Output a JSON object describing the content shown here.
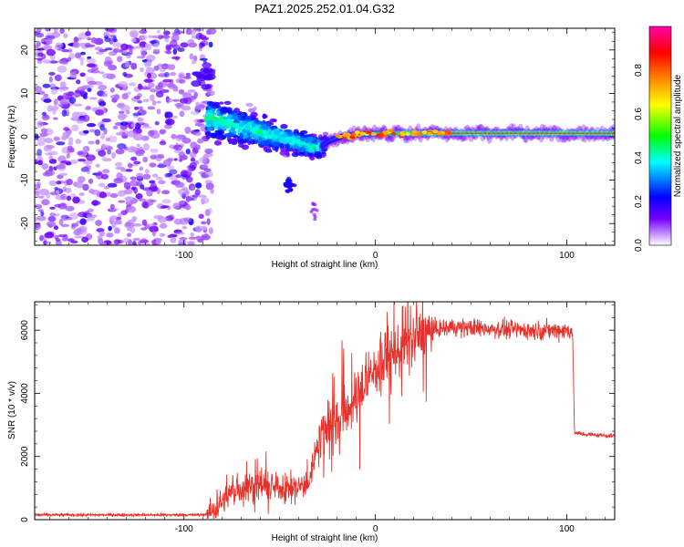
{
  "chart_data": [
    {
      "type": "heatmap",
      "title": "PAZ1.2025.252.01.04.G32",
      "xlabel": "Height of straight line (km)",
      "ylabel": "Frequency (Hz)",
      "xlim": [
        -178,
        125
      ],
      "ylim": [
        -25,
        25
      ],
      "x_ticks": [
        "-100",
        "0",
        "100"
      ],
      "y_ticks": [
        "20",
        "10",
        "0",
        "-10",
        "-20"
      ],
      "colorbar": {
        "label": "Normalized spectral amplitude",
        "range": [
          0,
          1
        ],
        "ticks": [
          "0.0",
          "0.2",
          "0.4",
          "0.6",
          "0.8"
        ],
        "stops": [
          "#ffffff",
          "#7700ff",
          "#0000ff",
          "#00ffff",
          "#00ff00",
          "#ffff00",
          "#ff8800",
          "#ff0000",
          "#ff00aa"
        ]
      },
      "features": {
        "noise_region_x": [
          -178,
          -85
        ],
        "tone_line_frequency_hz": 0.8,
        "tone_line_start_x": -30,
        "tone_line_end_x": 125
      }
    },
    {
      "type": "line",
      "xlabel": "Height of straight line (km)",
      "ylabel": "SNR (10 * v/v)",
      "xlim": [
        -178,
        125
      ],
      "ylim": [
        0,
        6900
      ],
      "x_ticks": [
        "-100",
        "0",
        "100"
      ],
      "y_ticks": [
        "0",
        "2000",
        "4000",
        "6000"
      ],
      "series": [
        {
          "name": "SNR",
          "color": "#e8302a",
          "x": [
            -178,
            -90,
            -85,
            -75,
            -65,
            -55,
            -45,
            -35,
            -30,
            -25,
            -20,
            -10,
            0,
            10,
            20,
            25,
            30,
            40,
            60,
            80,
            95,
            100,
            103,
            104,
            110,
            125
          ],
          "y": [
            150,
            150,
            250,
            900,
            1100,
            1000,
            1000,
            1100,
            2500,
            3000,
            3200,
            3800,
            4800,
            5300,
            5700,
            5900,
            6000,
            6100,
            6050,
            6000,
            6000,
            6000,
            6000,
            2750,
            2700,
            2650
          ]
        }
      ]
    }
  ]
}
